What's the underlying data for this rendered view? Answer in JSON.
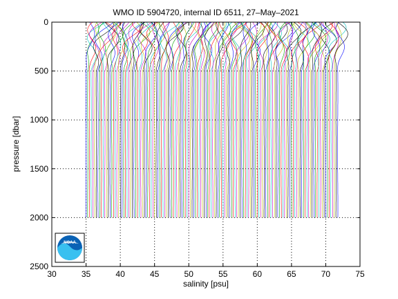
{
  "chart_data": {
    "type": "line",
    "title": "WMO ID 5904720, internal ID 6511, 27–May–2021",
    "xlabel": "salinity [psu]",
    "ylabel": "pressure [dbar]",
    "xlim": [
      30,
      75
    ],
    "ylim": [
      0,
      2500
    ],
    "y_reversed": true,
    "x_ticks": [
      30,
      35,
      40,
      45,
      50,
      55,
      60,
      65,
      70,
      75
    ],
    "y_ticks": [
      0,
      500,
      1000,
      1500,
      2000,
      2500
    ],
    "grid": "dotted",
    "legend": "none",
    "profile_count": 148,
    "offset_per_profile": 0.25,
    "first_profile_base_salinity": 35.0,
    "series_colors": [
      "#0000ff",
      "#00a000",
      "#ff0000",
      "#00c0c0",
      "#c000c0",
      "#c0c000",
      "#000000"
    ],
    "logo": {
      "name": "noaa-logo",
      "text": "NOAA",
      "position": "bottom-left"
    }
  }
}
